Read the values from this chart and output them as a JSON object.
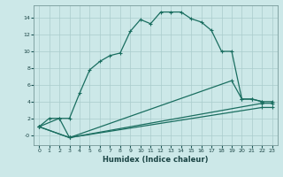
{
  "xlabel": "Humidex (Indice chaleur)",
  "xlim": [
    -0.5,
    23.5
  ],
  "ylim": [
    -1.2,
    15.5
  ],
  "background_color": "#cce8e8",
  "grid_color": "#aacccc",
  "line_color": "#1a6e60",
  "line1_x": [
    0,
    1,
    2,
    3,
    4,
    5,
    6,
    7,
    8,
    9,
    10,
    11,
    12,
    13,
    14,
    15,
    16,
    17,
    18,
    19,
    20,
    21,
    22,
    23
  ],
  "line1_y": [
    1.0,
    2.0,
    2.0,
    2.0,
    5.0,
    7.8,
    8.8,
    9.5,
    9.8,
    12.4,
    13.8,
    13.3,
    14.7,
    14.7,
    14.7,
    13.9,
    13.5,
    12.5,
    10.0,
    10.0,
    4.3,
    4.3,
    4.0,
    4.0
  ],
  "line2_x": [
    0,
    2,
    3,
    19,
    20,
    21,
    22
  ],
  "line2_y": [
    1.0,
    2.0,
    -0.3,
    6.5,
    4.3,
    4.3,
    4.0
  ],
  "line3_x": [
    0,
    3,
    22,
    23
  ],
  "line3_y": [
    1.0,
    -0.3,
    3.8,
    3.8
  ],
  "line4_x": [
    0,
    3,
    22,
    23
  ],
  "line4_y": [
    1.0,
    -0.3,
    3.3,
    3.3
  ],
  "xticks": [
    0,
    1,
    2,
    3,
    4,
    5,
    6,
    7,
    8,
    9,
    10,
    11,
    12,
    13,
    14,
    15,
    16,
    17,
    18,
    19,
    20,
    21,
    22,
    23
  ],
  "yticks": [
    0,
    2,
    4,
    6,
    8,
    10,
    12,
    14
  ],
  "ytick_labels": [
    "-0",
    "2",
    "4",
    "6",
    "8",
    "10",
    "12",
    "14"
  ]
}
